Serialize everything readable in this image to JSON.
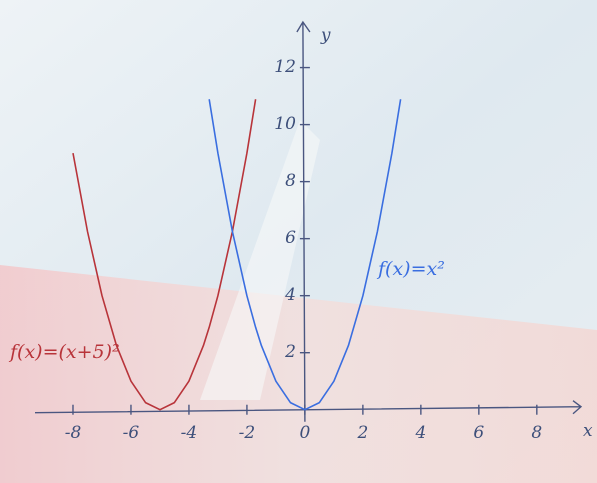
{
  "chart_data": {
    "type": "line",
    "x_label": "x",
    "y_label": "y",
    "x": [
      -8,
      -7.5,
      -7,
      -6.5,
      -6,
      -5.5,
      -5,
      -4.5,
      -4,
      -3.5,
      -3.3,
      -3,
      -2.5,
      -2,
      -1.7,
      -1.5,
      -1,
      -0.5,
      0,
      0.5,
      1,
      1.5,
      2,
      2.5,
      3,
      3.3
    ],
    "series": [
      {
        "name": "f(x)=(x+5)²",
        "color": "#b8343a",
        "values": [
          9,
          6.25,
          4,
          2.25,
          1,
          0.25,
          0,
          0.25,
          1,
          2.25,
          2.89,
          4,
          6.25,
          9,
          10.89,
          null,
          null,
          null,
          null,
          null,
          null,
          null,
          null,
          null,
          null,
          null
        ]
      },
      {
        "name": "f(x)=x²",
        "color": "#3a6ee0",
        "values": [
          null,
          null,
          null,
          null,
          null,
          null,
          null,
          null,
          null,
          null,
          10.89,
          9,
          6.25,
          4,
          2.89,
          2.25,
          1,
          0.25,
          0,
          0.25,
          1,
          2.25,
          4,
          6.25,
          9,
          10.89
        ]
      }
    ],
    "xlim": [
      -9.5,
      9.8
    ],
    "ylim": [
      -2.5,
      14.3
    ],
    "xticks": [
      -8,
      -6,
      -4,
      -2,
      0,
      2,
      4,
      6,
      8
    ],
    "yticks": [
      2,
      4,
      6,
      8,
      10,
      12
    ],
    "grid": false
  }
}
